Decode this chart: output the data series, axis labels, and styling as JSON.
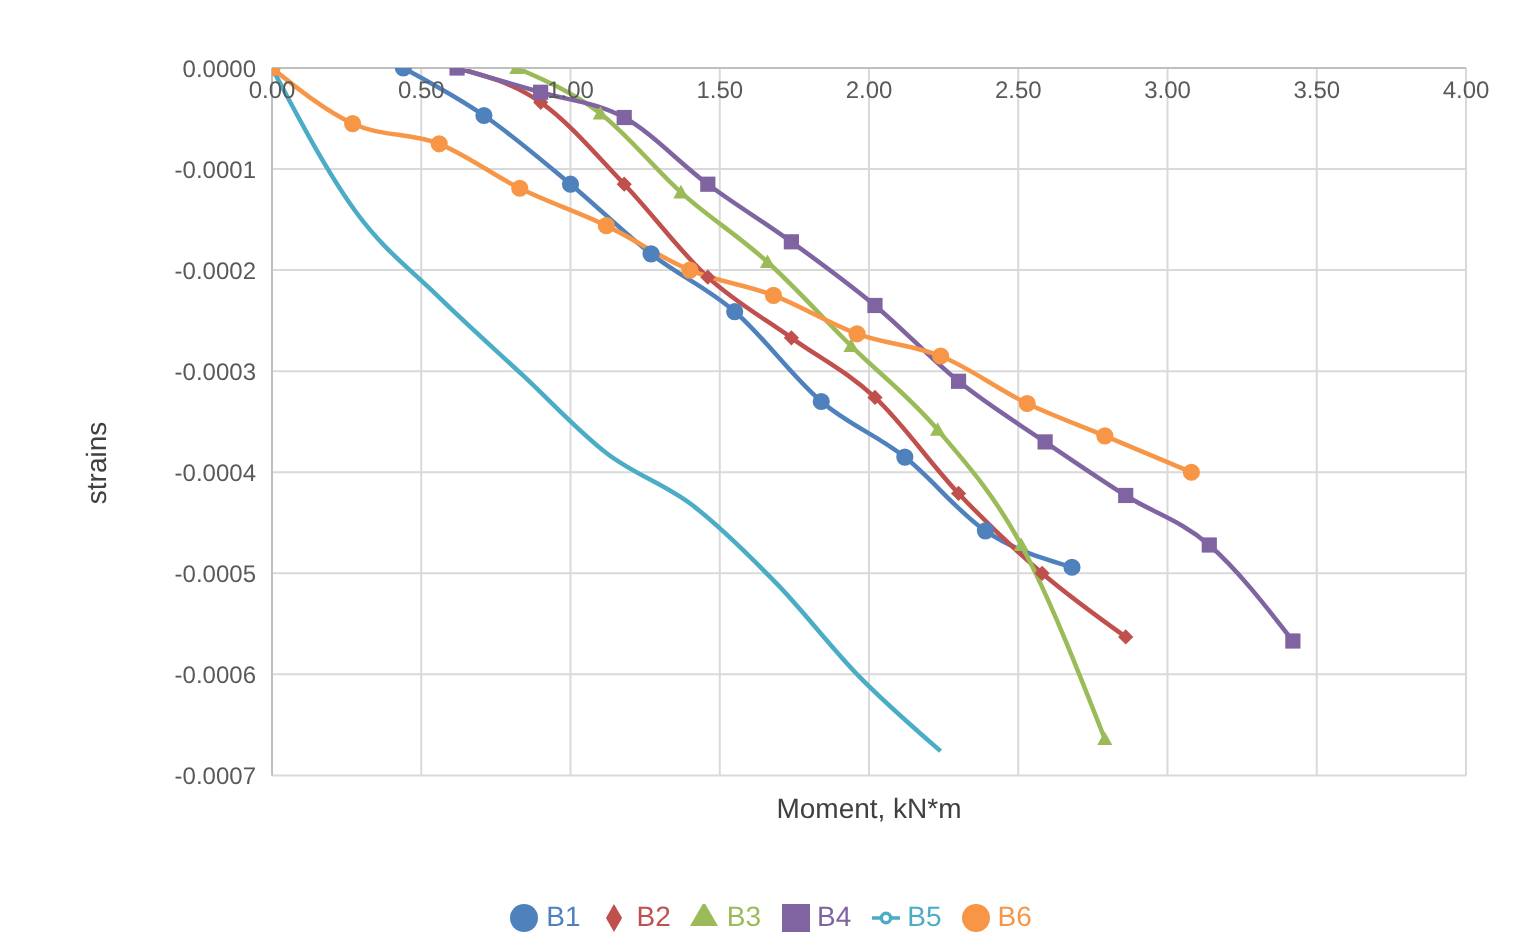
{
  "chart_data": {
    "type": "line",
    "xlabel": "Moment, kN*m",
    "ylabel": "strains",
    "xlim": [
      0,
      4
    ],
    "ylim": [
      -0.0007,
      0
    ],
    "xticks": [
      {
        "value": 0,
        "label": "0.00"
      },
      {
        "value": 0.5,
        "label": "0.50"
      },
      {
        "value": 1,
        "label": "1.00"
      },
      {
        "value": 1.5,
        "label": "1.50"
      },
      {
        "value": 2,
        "label": "2.00"
      },
      {
        "value": 2.5,
        "label": "2.50"
      },
      {
        "value": 3,
        "label": "3.00"
      },
      {
        "value": 3.5,
        "label": "3.50"
      },
      {
        "value": 4,
        "label": "4.00"
      }
    ],
    "yticks": [
      {
        "value": 0,
        "label": "0.0000"
      },
      {
        "value": -0.0001,
        "label": "-0.0001"
      },
      {
        "value": -0.0002,
        "label": "-0.0002"
      },
      {
        "value": -0.0003,
        "label": "-0.0003"
      },
      {
        "value": -0.0004,
        "label": "-0.0004"
      },
      {
        "value": -0.0005,
        "label": "-0.0005"
      },
      {
        "value": -0.0006,
        "label": "-0.0006"
      },
      {
        "value": -0.0007,
        "label": "-0.0007"
      }
    ],
    "grid": true,
    "legend": "bottom",
    "line_style": "solid",
    "series": [
      {
        "name": "B1",
        "color": "#4f81bd",
        "marker": "circle",
        "x": [
          0.44,
          0.71,
          1.0,
          1.27,
          1.55,
          1.84,
          2.12,
          2.39,
          2.68
        ],
        "values": [
          0,
          -4.7e-05,
          -0.000115,
          -0.000184,
          -0.000241,
          -0.00033,
          -0.000385,
          -0.000458,
          -0.000494
        ]
      },
      {
        "name": "B2",
        "color": "#c0504d",
        "marker": "diamond",
        "x": [
          0.62,
          0.9,
          1.18,
          1.46,
          1.74,
          2.02,
          2.3,
          2.58,
          2.86
        ],
        "values": [
          0,
          -3.4e-05,
          -0.000115,
          -0.000207,
          -0.000267,
          -0.000326,
          -0.000421,
          -0.0005,
          -0.000563
        ]
      },
      {
        "name": "B3",
        "color": "#9bbb59",
        "marker": "triangle",
        "x": [
          0.82,
          1.1,
          1.37,
          1.66,
          1.94,
          2.23,
          2.51,
          2.79
        ],
        "values": [
          0,
          -4.5e-05,
          -0.000123,
          -0.000192,
          -0.000275,
          -0.000358,
          -0.000472,
          -0.000664
        ]
      },
      {
        "name": "B4",
        "color": "#8064a2",
        "marker": "square",
        "x": [
          0.62,
          0.9,
          1.18,
          1.46,
          1.74,
          2.02,
          2.3,
          2.59,
          2.86,
          3.14,
          3.42
        ],
        "values": [
          0,
          -2.4e-05,
          -4.9e-05,
          -0.000115,
          -0.000172,
          -0.000235,
          -0.00031,
          -0.00037,
          -0.000423,
          -0.000472,
          -0.000567
        ]
      },
      {
        "name": "B5",
        "color": "#4bacc6",
        "marker": "none",
        "x": [
          0,
          0.28,
          0.56,
          0.84,
          1.12,
          1.41,
          1.69,
          1.97,
          2.24
        ],
        "values": [
          0,
          -0.000142,
          -0.000227,
          -0.000304,
          -0.000381,
          -0.000433,
          -0.00051,
          -0.000603,
          -0.000676
        ]
      },
      {
        "name": "B6",
        "color": "#f79646",
        "marker": "circle",
        "x": [
          0,
          0.27,
          0.56,
          0.83,
          1.12,
          1.4,
          1.68,
          1.96,
          2.24,
          2.53,
          2.79,
          3.08
        ],
        "values": [
          0,
          -5.5e-05,
          -7.5e-05,
          -0.000119,
          -0.000156,
          -0.0002,
          -0.000225,
          -0.000263,
          -0.000285,
          -0.000332,
          -0.000364,
          -0.0004
        ]
      }
    ]
  }
}
